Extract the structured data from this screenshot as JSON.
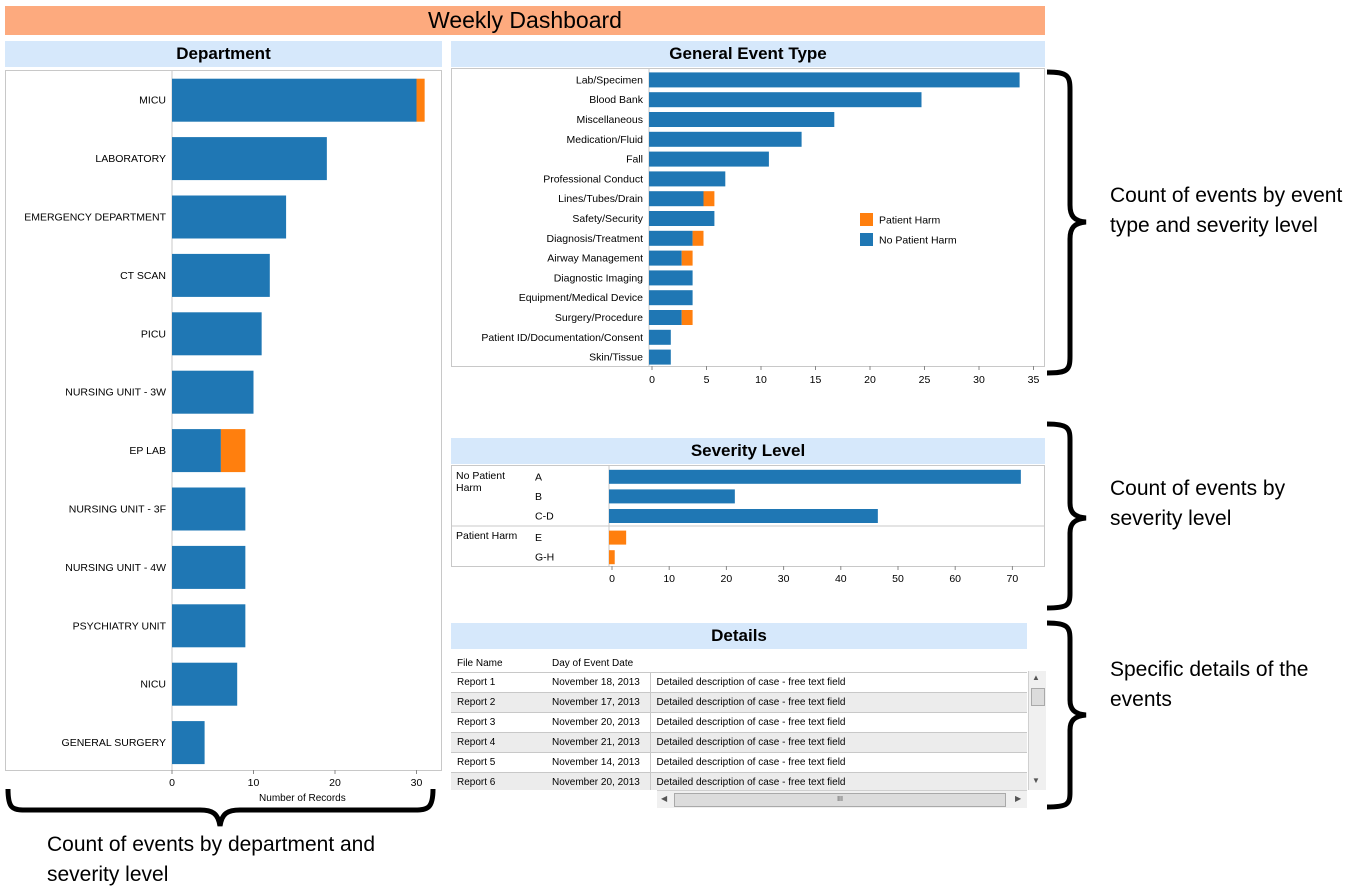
{
  "banner_title": "Weekly Dashboard",
  "colors": {
    "no_harm": "#1f77b4",
    "harm": "#ff7f0e",
    "header_bg": "#d6e8fb",
    "banner_bg": "#fdaa7e"
  },
  "chart_data": [
    {
      "type": "bar",
      "orientation": "horizontal",
      "stacked": true,
      "title": "Department",
      "xlabel": "Number of Records",
      "xlim": [
        0,
        32
      ],
      "xticks": [
        0,
        10,
        20,
        30
      ],
      "categories": [
        "MICU",
        "LABORATORY",
        "EMERGENCY DEPARTMENT",
        "CT SCAN",
        "PICU",
        "NURSING UNIT - 3W",
        "EP LAB",
        "NURSING UNIT - 3F",
        "NURSING UNIT - 4W",
        "PSYCHIATRY UNIT",
        "NICU",
        "GENERAL SURGERY"
      ],
      "series": [
        {
          "values": [
            30,
            19,
            14,
            12,
            11,
            10,
            6,
            9,
            9,
            9,
            8,
            4
          ]
        },
        {
          "values": [
            1,
            0,
            0,
            0,
            0,
            0,
            3,
            0,
            0,
            0,
            0,
            0
          ]
        }
      ]
    },
    {
      "type": "bar",
      "orientation": "horizontal",
      "stacked": true,
      "title": "General Event Type",
      "xlabel": "",
      "xlim": [
        0,
        35.5
      ],
      "xticks": [
        0,
        5,
        10,
        15,
        20,
        25,
        30,
        35
      ],
      "legend_position": "right",
      "categories": [
        "Lab/Specimen",
        "Blood Bank",
        "Miscellaneous",
        "Medication/Fluid",
        "Fall",
        "Professional Conduct",
        "Lines/Tubes/Drain",
        "Safety/Security",
        "Diagnosis/Treatment",
        "Airway Management",
        "Diagnostic Imaging",
        "Equipment/Medical Device",
        "Surgery/Procedure",
        "Patient ID/Documentation/Consent",
        "Skin/Tissue"
      ],
      "series": [
        {
          "name": "No Patient Harm",
          "values": [
            34,
            25,
            17,
            14,
            11,
            7,
            5,
            6,
            4,
            3,
            4,
            4,
            3,
            2,
            2
          ]
        },
        {
          "name": "Patient Harm",
          "values": [
            0,
            0,
            0,
            0,
            0,
            0,
            1,
            0,
            1,
            1,
            0,
            0,
            1,
            0,
            0
          ]
        }
      ]
    },
    {
      "type": "bar",
      "orientation": "horizontal",
      "title": "Severity Level",
      "xlim": [
        0,
        73
      ],
      "xticks": [
        0,
        10,
        20,
        30,
        40,
        50,
        60,
        70
      ],
      "groups": [
        {
          "label": "No Patient Harm",
          "levels": [
            "A",
            "B",
            "C-D"
          ],
          "values": [
            72,
            22,
            47
          ]
        },
        {
          "label": "Patient Harm",
          "levels": [
            "E",
            "G-H"
          ],
          "values": [
            3,
            1
          ]
        }
      ]
    }
  ],
  "details": {
    "title": "Details",
    "columns": [
      "File Name",
      "Day of Event Date",
      ""
    ],
    "rows": [
      [
        "Report 1",
        "November 18, 2013",
        "Detailed description of case - free text field"
      ],
      [
        "Report 2",
        "November 17, 2013",
        "Detailed description of case - free text field"
      ],
      [
        "Report 3",
        "November 20, 2013",
        "Detailed description of case - free text field"
      ],
      [
        "Report 4",
        "November 21, 2013",
        "Detailed description of case - free text field"
      ],
      [
        "Report 5",
        "November 14, 2013",
        "Detailed description of case - free text field"
      ],
      [
        "Report 6",
        "November 20, 2013",
        "Detailed description of case - free text field"
      ]
    ],
    "scroll_grip": "III"
  },
  "annotations": {
    "event_type": "Count of events by event type and severity level",
    "severity": "Count of events by severity level",
    "details": "Specific details of the events",
    "department": "Count of events by department and severity level"
  }
}
